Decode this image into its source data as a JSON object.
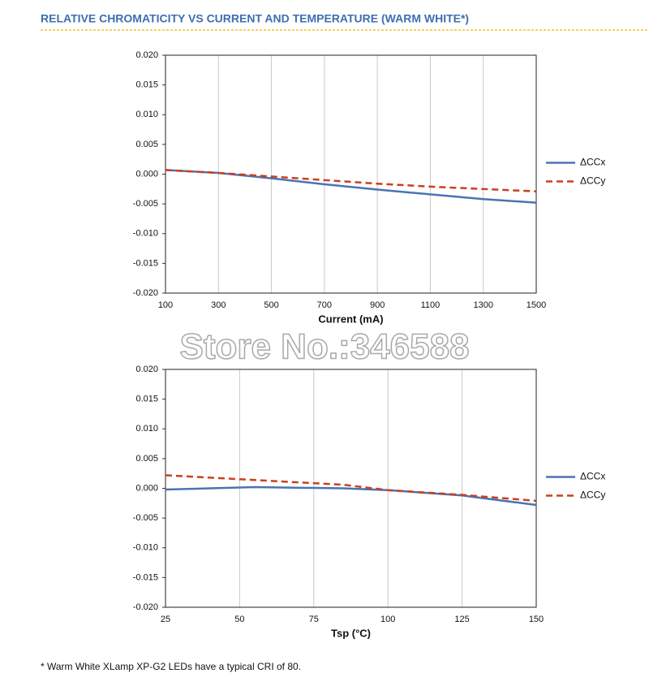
{
  "title": "RELATIVE CHROMATICITY VS CURRENT AND TEMPERATURE (WARM WHITE*)",
  "watermark": "Store No.:346588",
  "footnote": "* Warm White XLamp XP-G2 LEDs have a typical CRI of 80.",
  "chart_data": [
    {
      "type": "line",
      "x_label": "Current (mA)",
      "x": [
        100,
        300,
        500,
        700,
        900,
        1100,
        1300,
        1500
      ],
      "series": [
        {
          "name": "ΔCCx",
          "color": "#4a74b4",
          "line_style": "solid",
          "values": [
            0.0007,
            0.0002,
            -0.0007,
            -0.0017,
            -0.0026,
            -0.0034,
            -0.0042,
            -0.0048
          ]
        },
        {
          "name": "ΔCCy",
          "color": "#c8401e",
          "line_style": "dashed",
          "values": [
            0.0007,
            0.0002,
            -0.0004,
            -0.001,
            -0.0016,
            -0.0021,
            -0.0025,
            -0.0029
          ]
        }
      ],
      "xlim": [
        100,
        1500
      ],
      "xticks": [
        100,
        300,
        500,
        700,
        900,
        1100,
        1300,
        1500
      ],
      "ylim": [
        -0.02,
        0.02
      ],
      "yticks": [
        {
          "value": 0.02,
          "label": "0.020"
        },
        {
          "value": 0.015,
          "label": "0.015"
        },
        {
          "value": 0.01,
          "label": "0.010"
        },
        {
          "value": 0.005,
          "label": "0.005"
        },
        {
          "value": 0,
          "label": "0.000"
        },
        {
          "value": -0.005,
          "label": "-0.005"
        },
        {
          "value": -0.01,
          "label": "-0.010"
        },
        {
          "value": -0.015,
          "label": "-0.015"
        },
        {
          "value": -0.02,
          "label": "-0.020"
        }
      ],
      "grid": "x",
      "legend": "right"
    },
    {
      "type": "line",
      "x_label": "Tsp (°C)",
      "x": [
        25,
        55,
        85,
        100,
        125,
        150
      ],
      "series": [
        {
          "name": "ΔCCx",
          "color": "#4a74b4",
          "line_style": "solid",
          "values": [
            -0.0002,
            0.0002,
            0.0,
            -0.0003,
            -0.0012,
            -0.0028
          ]
        },
        {
          "name": "ΔCCy",
          "color": "#c8401e",
          "line_style": "dashed",
          "values": [
            0.0022,
            0.0014,
            0.0006,
            -0.0003,
            -0.0011,
            -0.0021
          ]
        }
      ],
      "xlim": [
        25,
        150
      ],
      "xticks": [
        25,
        50,
        75,
        100,
        125,
        150
      ],
      "ylim": [
        -0.02,
        0.02
      ],
      "yticks": [
        {
          "value": 0.02,
          "label": "0.020"
        },
        {
          "value": 0.015,
          "label": "0.015"
        },
        {
          "value": 0.01,
          "label": "0.010"
        },
        {
          "value": 0.005,
          "label": "0.005"
        },
        {
          "value": 0,
          "label": "0.000"
        },
        {
          "value": -0.005,
          "label": "-0.005"
        },
        {
          "value": -0.01,
          "label": "-0.010"
        },
        {
          "value": -0.015,
          "label": "-0.015"
        },
        {
          "value": -0.02,
          "label": "-0.020"
        }
      ],
      "grid": "x",
      "legend": "right"
    }
  ]
}
